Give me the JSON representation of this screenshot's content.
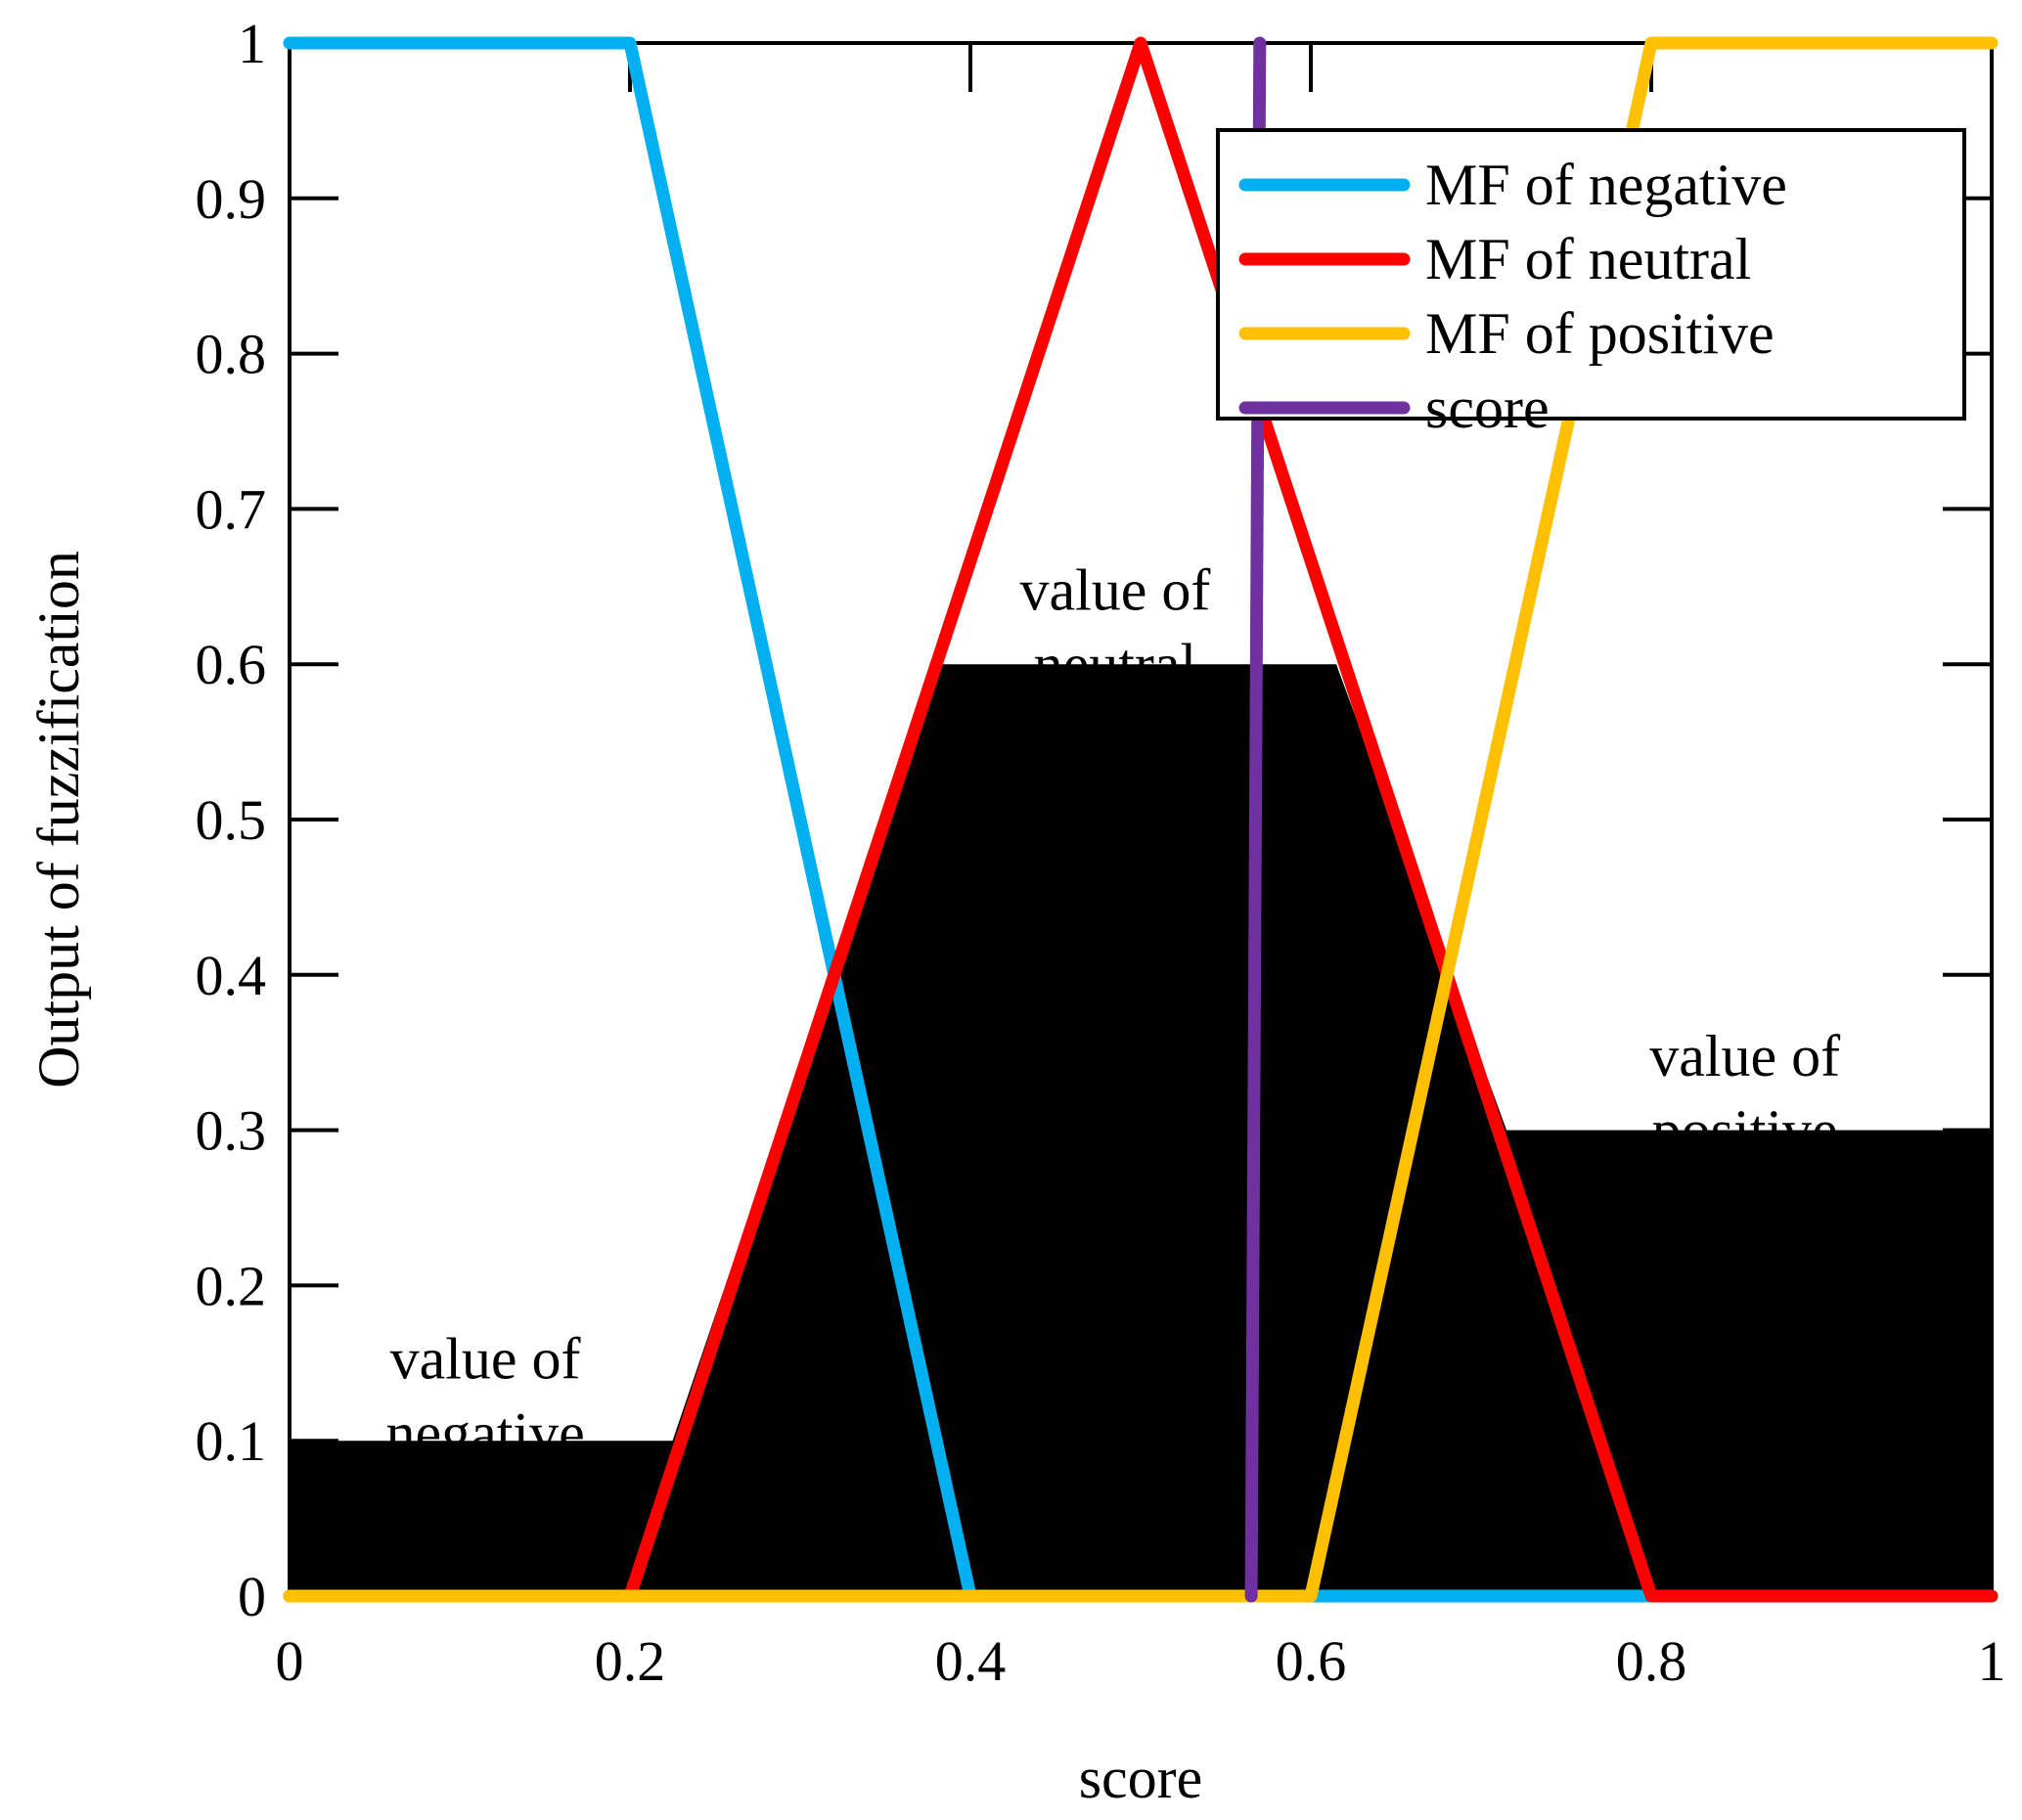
{
  "chart_data": {
    "type": "line",
    "title": "",
    "xlabel": "score",
    "ylabel": "Output of fuzzification",
    "xlim": [
      0,
      1
    ],
    "ylim": [
      0,
      1
    ],
    "grid": false,
    "legend_position": "top-right",
    "x_ticks": [
      0,
      0.2,
      0.4,
      0.6,
      0.8,
      1
    ],
    "x_tick_labels": [
      "0",
      "0.2",
      "0.4",
      "0.6",
      "0.8",
      "1"
    ],
    "y_ticks": [
      0,
      0.1,
      0.2,
      0.3,
      0.4,
      0.5,
      0.6,
      0.7,
      0.8,
      0.9,
      1
    ],
    "y_tick_labels": [
      "0",
      "0.1",
      "0.2",
      "0.3",
      "0.4",
      "0.5",
      "0.6",
      "0.7",
      "0.8",
      "0.9",
      "1"
    ],
    "filled_region": {
      "color": "#000000",
      "points": [
        [
          0,
          0
        ],
        [
          0,
          0.1
        ],
        [
          0.225,
          0.1
        ],
        [
          0.38,
          0.6
        ],
        [
          0.615,
          0.6
        ],
        [
          0.715,
          0.3
        ],
        [
          1,
          0.3
        ],
        [
          1,
          0
        ]
      ]
    },
    "series": [
      {
        "name": "MF of negative",
        "color": "#00B0F0",
        "x": [
          0,
          0.2,
          0.4,
          1
        ],
        "y": [
          1,
          1,
          0,
          0
        ]
      },
      {
        "name": "MF of neutral",
        "color": "#FF0000",
        "x": [
          0,
          0.2,
          0.5,
          0.8,
          1
        ],
        "y": [
          0,
          0,
          1,
          0,
          0
        ]
      },
      {
        "name": "MF of positive",
        "color": "#FFC000",
        "x": [
          0,
          0.6,
          0.8,
          1
        ],
        "y": [
          0,
          0,
          1,
          1
        ]
      },
      {
        "name": "score",
        "color": "#7030A0",
        "x": [
          0.565,
          0.57
        ],
        "y": [
          0,
          1
        ]
      }
    ],
    "annotations": [
      {
        "lines": [
          "value of",
          "negative"
        ],
        "x": 0.115,
        "y": 0.14
      },
      {
        "lines": [
          "value of",
          "neutral"
        ],
        "x": 0.485,
        "y": 0.635
      },
      {
        "lines": [
          "value of",
          "positive"
        ],
        "x": 0.855,
        "y": 0.335
      }
    ]
  }
}
